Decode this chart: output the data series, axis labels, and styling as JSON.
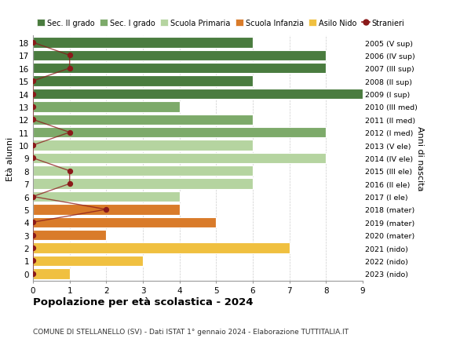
{
  "ages": [
    18,
    17,
    16,
    15,
    14,
    13,
    12,
    11,
    10,
    9,
    8,
    7,
    6,
    5,
    4,
    3,
    2,
    1,
    0
  ],
  "years": [
    "2005 (V sup)",
    "2006 (IV sup)",
    "2007 (III sup)",
    "2008 (II sup)",
    "2009 (I sup)",
    "2010 (III med)",
    "2011 (II med)",
    "2012 (I med)",
    "2013 (V ele)",
    "2014 (IV ele)",
    "2015 (III ele)",
    "2016 (II ele)",
    "2017 (I ele)",
    "2018 (mater)",
    "2019 (mater)",
    "2020 (mater)",
    "2021 (nido)",
    "2022 (nido)",
    "2023 (nido)"
  ],
  "bar_values": [
    6,
    8,
    8,
    6,
    9,
    4,
    6,
    8,
    6,
    8,
    6,
    6,
    4,
    4,
    5,
    2,
    7,
    3,
    1
  ],
  "bar_colors": [
    "#4a7c3f",
    "#4a7c3f",
    "#4a7c3f",
    "#4a7c3f",
    "#4a7c3f",
    "#7daa6a",
    "#7daa6a",
    "#7daa6a",
    "#b5d4a0",
    "#b5d4a0",
    "#b5d4a0",
    "#b5d4a0",
    "#b5d4a0",
    "#d97b2a",
    "#d97b2a",
    "#d97b2a",
    "#f0c040",
    "#f0c040",
    "#f0c040"
  ],
  "stranieri_values": [
    0,
    1,
    1,
    0,
    0,
    0,
    0,
    1,
    0,
    0,
    1,
    1,
    0,
    2,
    0,
    0,
    0,
    0,
    0
  ],
  "stranieri_color": "#8b1a1a",
  "legend_labels": [
    "Sec. II grado",
    "Sec. I grado",
    "Scuola Primaria",
    "Scuola Infanzia",
    "Asilo Nido",
    "Stranieri"
  ],
  "legend_colors": [
    "#4a7c3f",
    "#7daa6a",
    "#b5d4a0",
    "#d97b2a",
    "#f0c040",
    "#8b1a1a"
  ],
  "title": "Popolazione per età scolastica - 2024",
  "subtitle": "COMUNE DI STELLANELLO (SV) - Dati ISTAT 1° gennaio 2024 - Elaborazione TUTTITALIA.IT",
  "ylabel_left": "Età alunni",
  "ylabel_right": "Anni di nascita",
  "xlim": [
    0,
    9
  ],
  "ylim_min": -0.55,
  "ylim_max": 18.55,
  "background_color": "#ffffff",
  "grid_color": "#cccccc",
  "bar_edge_color": "#ffffff",
  "bar_height": 0.82
}
